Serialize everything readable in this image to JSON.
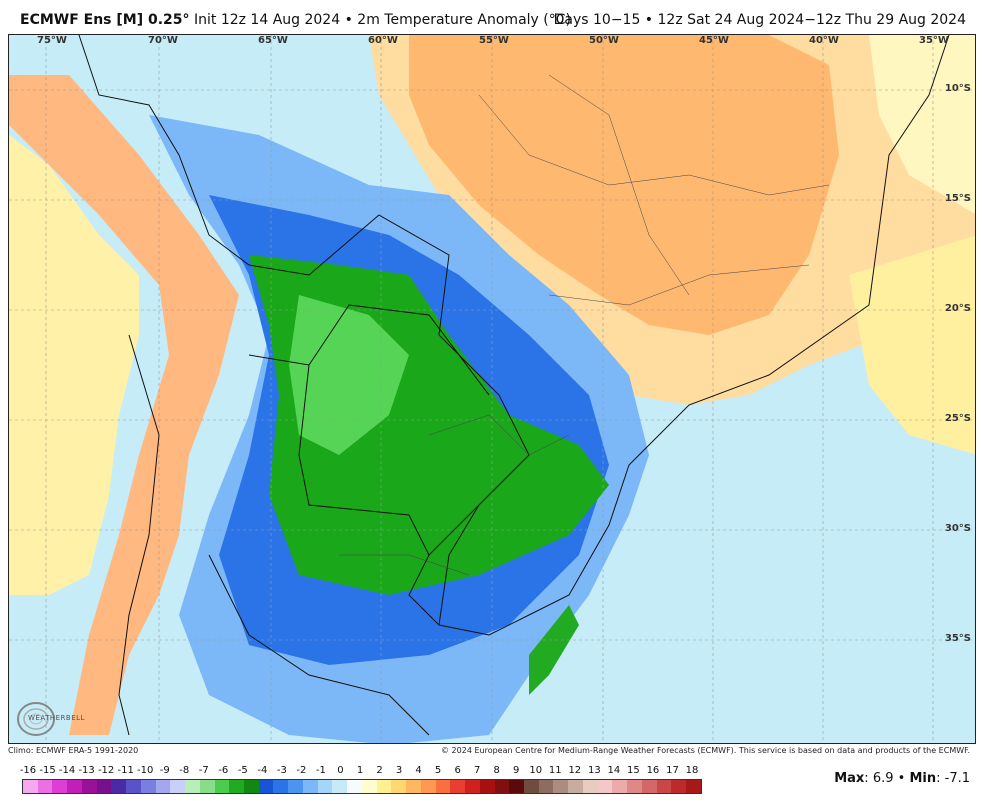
{
  "header": {
    "model": "ECMWF Ens [M] 0.25",
    "degree": "°",
    "init": "Init 12z 14 Aug 2024",
    "sep": "•",
    "field": "2m Temperature Anomaly (°C)",
    "period": "Days 10−15 • 12z Sat 24 Aug 2024−12z Thu 29 Aug 2024"
  },
  "axes": {
    "lon": [
      "75°W",
      "70°W",
      "65°W",
      "60°W",
      "55°W",
      "50°W",
      "45°W",
      "40°W",
      "35°W"
    ],
    "lat": [
      "10°S",
      "15°S",
      "20°S",
      "25°S",
      "30°S",
      "35°S"
    ]
  },
  "footer": {
    "climo": "Climo: ECMWF ERA-5 1991-2020",
    "copyright": "© 2024 European Centre for Medium-Range Weather Forecasts (ECMWF). This service is based on data and products of the ECMWF."
  },
  "scale": {
    "labels": [
      "-16",
      "-15",
      "-14",
      "-13",
      "-12",
      "-11",
      "-10",
      "-9",
      "-8",
      "-7",
      "-6",
      "-5",
      "-4",
      "-3",
      "-2",
      "-1",
      "0",
      "1",
      "2",
      "3",
      "4",
      "5",
      "6",
      "7",
      "8",
      "9",
      "10",
      "11",
      "12",
      "13",
      "14",
      "15",
      "16",
      "17",
      "18"
    ],
    "colors": [
      "#f7a8f0",
      "#ec6fe4",
      "#dc3fd3",
      "#c21eb9",
      "#9a109a",
      "#7a0f8e",
      "#4b2aa8",
      "#5a52c8",
      "#7a7ee0",
      "#a3a7f0",
      "#c8d0f8",
      "#b8eeb8",
      "#88dd88",
      "#4ccc4c",
      "#22aa22",
      "#118811",
      "#1855d4",
      "#2a74e8",
      "#4c94f0",
      "#7cb8f8",
      "#a4d6fa",
      "#c6eaf8",
      "#f7faff",
      "#fffcd0",
      "#fff090",
      "#ffd870",
      "#ffb860",
      "#ff9850",
      "#f87040",
      "#e84030",
      "#d02020",
      "#a81010",
      "#801010",
      "#5a0a0a",
      "#6e4c40",
      "#8e6c60",
      "#ac8c80",
      "#c8aca0",
      "#e8ccc0",
      "#f4c8c8",
      "#ecaaaa",
      "#e08888",
      "#d46868",
      "#c84848",
      "#bc2a2a",
      "#a81818"
    ]
  },
  "stats": {
    "max_label": "Max",
    "max": "6.9",
    "sep": "•",
    "min_label": "Min",
    "min": "-7.1"
  },
  "logo": {
    "text": "WEATHERBELL"
  }
}
